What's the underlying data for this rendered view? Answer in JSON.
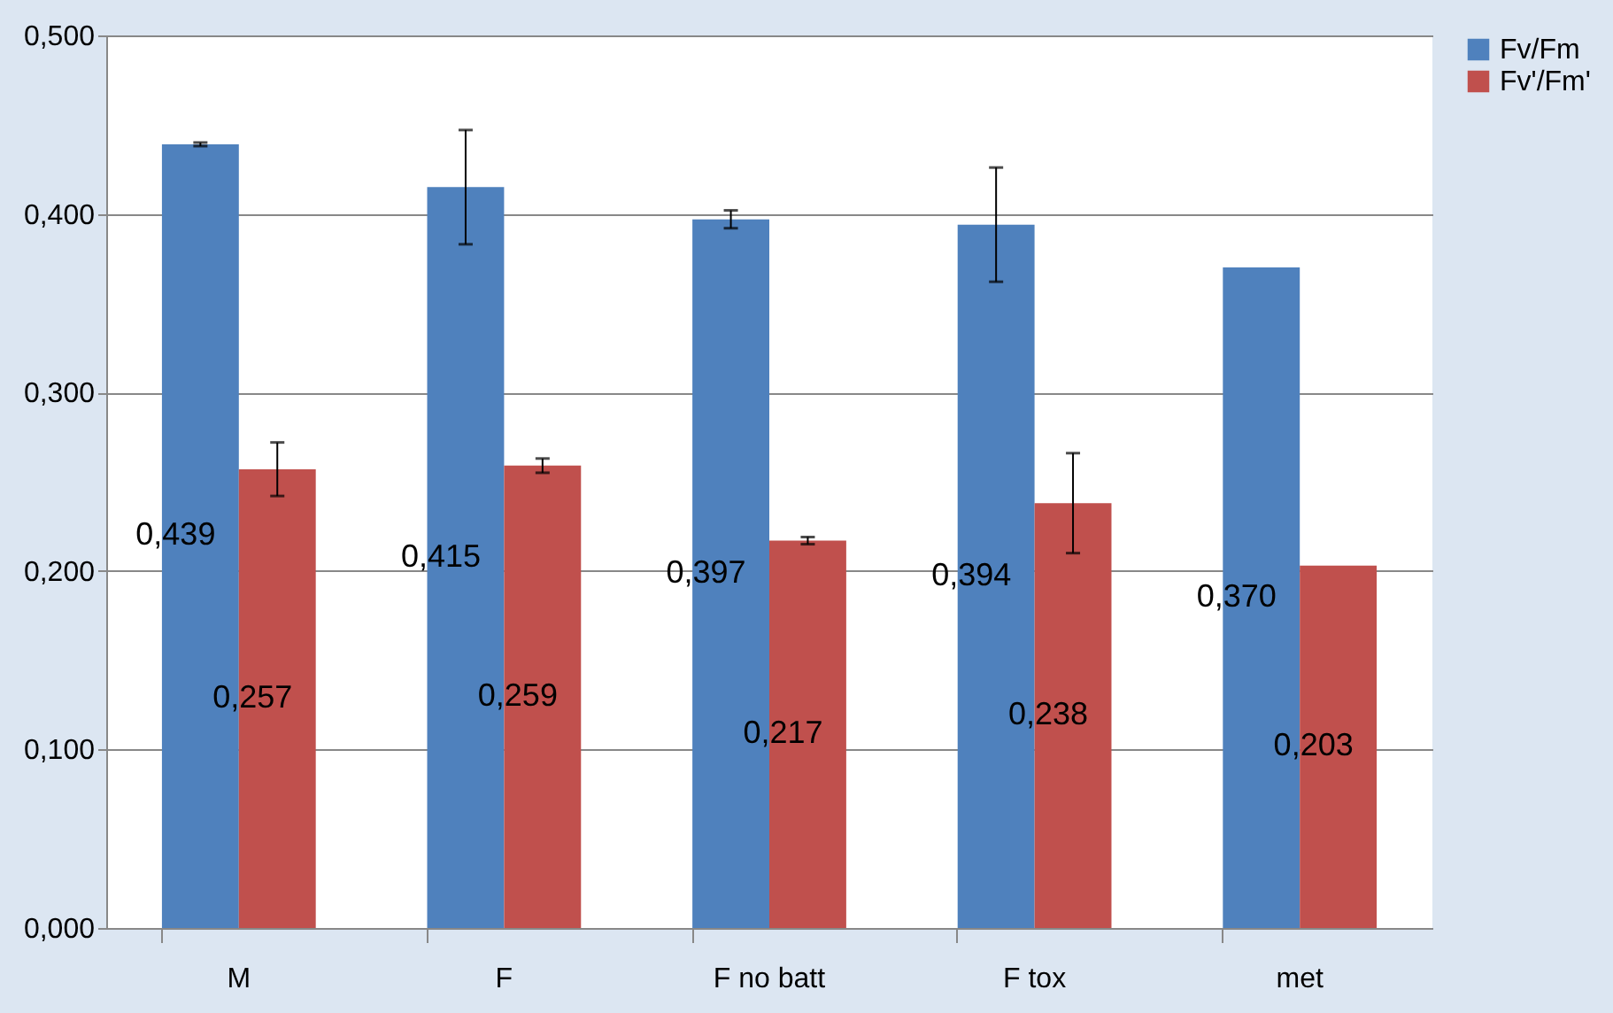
{
  "chart_data": {
    "type": "bar",
    "categories": [
      "M",
      "F",
      "F no batt",
      "F tox",
      "met"
    ],
    "series": [
      {
        "name": "Fv/Fm",
        "color": "#4f81bd",
        "values": [
          0.439,
          0.415,
          0.397,
          0.394,
          0.37
        ],
        "errors": [
          0.001,
          0.032,
          0.005,
          0.032,
          null
        ],
        "value_labels": [
          "0,439",
          "0,415",
          "0,397",
          "0,394",
          "0,370"
        ]
      },
      {
        "name": "Fv'/Fm'",
        "color": "#c0504d",
        "values": [
          0.257,
          0.259,
          0.217,
          0.238,
          0.203
        ],
        "errors": [
          0.015,
          0.004,
          0.002,
          0.028,
          null
        ],
        "value_labels": [
          "0,257",
          "0,259",
          "0,217",
          "0,238",
          "0,203"
        ]
      }
    ],
    "ylim": [
      0,
      0.5
    ],
    "yticks": [
      {
        "value": 0,
        "label": "0,000"
      },
      {
        "value": 0.1,
        "label": "0,100"
      },
      {
        "value": 0.2,
        "label": "0,200"
      },
      {
        "value": 0.3,
        "label": "0,300"
      },
      {
        "value": 0.4,
        "label": "0,400"
      },
      {
        "value": 0.5,
        "label": "0,500"
      }
    ],
    "grid": "y",
    "legend": "right"
  }
}
